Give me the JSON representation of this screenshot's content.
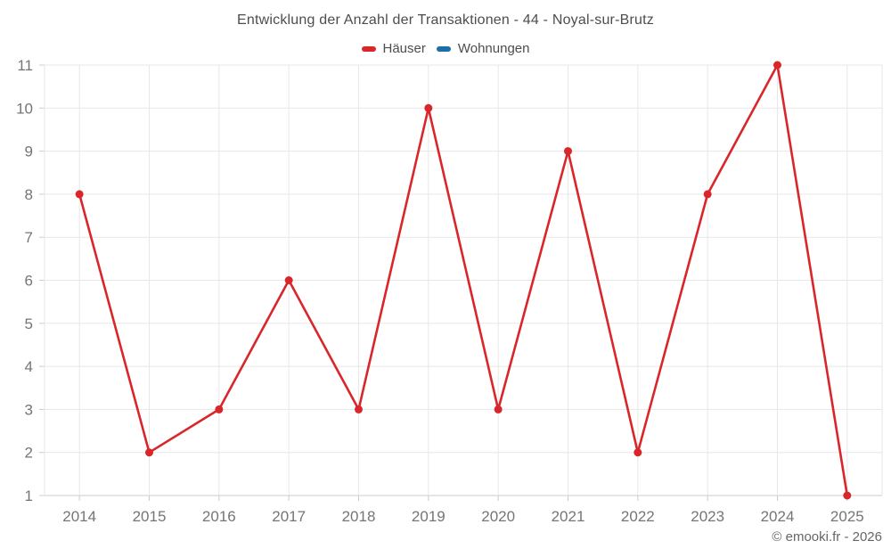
{
  "watermark": {
    "text": "© emooki.fr - 2026"
  },
  "chart_data": {
    "type": "line",
    "title": "Entwicklung der Anzahl der Transaktionen - 44 - Noyal-sur-Brutz",
    "categories": [
      "2014",
      "2015",
      "2016",
      "2017",
      "2018",
      "2019",
      "2020",
      "2021",
      "2022",
      "2023",
      "2024",
      "2025"
    ],
    "series": [
      {
        "name": "Häuser",
        "color": "#d9262b",
        "values": [
          8,
          2,
          3,
          6,
          3,
          10,
          3,
          9,
          2,
          8,
          11,
          1
        ]
      },
      {
        "name": "Wohnungen",
        "color": "#1c6ea4",
        "values": []
      }
    ],
    "xlabel": "",
    "ylabel": "",
    "ylim": [
      1,
      11
    ],
    "y_ticks": [
      1,
      2,
      3,
      4,
      5,
      6,
      7,
      8,
      9,
      10,
      11
    ],
    "grid": true,
    "legend_position": "top",
    "marker": "circle"
  },
  "style": {
    "grid_color": "#e7e7e7",
    "axis_color": "#cccccc",
    "tick_label_color": "#757575",
    "title_color": "#4d4d4d",
    "background": "#ffffff"
  }
}
